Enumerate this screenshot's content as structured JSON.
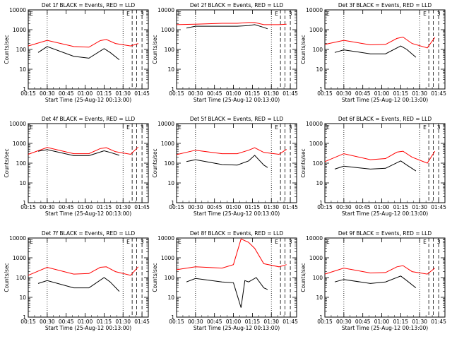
{
  "chart_data": [
    {
      "type": "line",
      "title": "Det 1f BLACK = Events, RED = LLD",
      "xlabel": "Start Time (25-Aug-12 00:13:00)",
      "ylabel": "Counts/sec",
      "series": [
        {
          "name": "Events",
          "color": "#000000",
          "values": [
            [
              0.38,
              70
            ],
            [
              0.5,
              140
            ],
            [
              0.85,
              45
            ],
            [
              1.05,
              36
            ],
            [
              1.25,
              110
            ],
            [
              1.33,
              70
            ],
            [
              1.45,
              30
            ]
          ]
        },
        {
          "name": "LLD",
          "color": "#ff0000",
          "values": [
            [
              0.25,
              150
            ],
            [
              0.5,
              290
            ],
            [
              0.85,
              140
            ],
            [
              1.05,
              130
            ],
            [
              1.2,
              280
            ],
            [
              1.28,
              320
            ],
            [
              1.4,
              200
            ],
            [
              1.6,
              150
            ],
            [
              1.7,
              200
            ]
          ]
        }
      ],
      "marker": "3"
    },
    {
      "type": "line",
      "title": "Det 2f BLACK = Events, RED = LLD",
      "xlabel": "Start Time (25-Aug-12 00:13:00)",
      "ylabel": "Counts/sec",
      "series": [
        {
          "name": "Events",
          "color": "#000000",
          "values": [
            [
              0.38,
              1200
            ],
            [
              0.5,
              1500
            ],
            [
              0.85,
              1500
            ],
            [
              1.05,
              1500
            ],
            [
              1.2,
              1600
            ],
            [
              1.28,
              1800
            ],
            [
              1.4,
              1300
            ],
            [
              1.45,
              1100
            ]
          ]
        },
        {
          "name": "LLD",
          "color": "#ff0000",
          "values": [
            [
              0.25,
              1800
            ],
            [
              0.5,
              1900
            ],
            [
              0.85,
              2100
            ],
            [
              1.05,
              2100
            ],
            [
              1.2,
              2300
            ],
            [
              1.28,
              2300
            ],
            [
              1.4,
              1800
            ],
            [
              1.6,
              1800
            ],
            [
              1.7,
              1900
            ]
          ]
        }
      ],
      "marker": "3"
    },
    {
      "type": "line",
      "title": "Det 3f BLACK = Events, RED = LLD",
      "xlabel": "Start Time (25-Aug-12 00:13:00)",
      "ylabel": "Counts/sec",
      "series": [
        {
          "name": "Events",
          "color": "#000000",
          "values": [
            [
              0.38,
              70
            ],
            [
              0.5,
              95
            ],
            [
              0.85,
              60
            ],
            [
              1.05,
              60
            ],
            [
              1.25,
              150
            ],
            [
              1.33,
              100
            ],
            [
              1.45,
              40
            ]
          ]
        },
        {
          "name": "LLD",
          "color": "#ff0000",
          "values": [
            [
              0.25,
              180
            ],
            [
              0.5,
              290
            ],
            [
              0.85,
              170
            ],
            [
              1.05,
              180
            ],
            [
              1.2,
              360
            ],
            [
              1.28,
              420
            ],
            [
              1.4,
              200
            ],
            [
              1.6,
              120
            ],
            [
              1.7,
              400
            ]
          ]
        }
      ],
      "marker": "3"
    },
    {
      "type": "line",
      "title": "Det 4f BLACK = Events, RED = LLD",
      "xlabel": "Start Time (25-Aug-12 00:13:00)",
      "ylabel": "Counts/sec",
      "series": [
        {
          "name": "Events",
          "color": "#000000",
          "values": [
            [
              0.38,
              400
            ],
            [
              0.5,
              480
            ],
            [
              0.85,
              240
            ],
            [
              1.05,
              240
            ],
            [
              1.25,
              420
            ],
            [
              1.33,
              350
            ],
            [
              1.45,
              250
            ]
          ]
        },
        {
          "name": "LLD",
          "color": "#ff0000",
          "values": [
            [
              0.25,
              280
            ],
            [
              0.5,
              620
            ],
            [
              0.85,
              300
            ],
            [
              1.05,
              300
            ],
            [
              1.2,
              550
            ],
            [
              1.28,
              600
            ],
            [
              1.4,
              380
            ],
            [
              1.6,
              280
            ],
            [
              1.7,
              650
            ]
          ]
        }
      ],
      "marker": "3"
    },
    {
      "type": "line",
      "title": "Det 5f BLACK = Events, RED = LLD",
      "xlabel": "Start Time (25-Aug-12 00:13:00)",
      "ylabel": "Counts/sec",
      "series": [
        {
          "name": "Events",
          "color": "#000000",
          "values": [
            [
              0.38,
              120
            ],
            [
              0.5,
              150
            ],
            [
              0.85,
              85
            ],
            [
              1.05,
              80
            ],
            [
              1.2,
              130
            ],
            [
              1.28,
              250
            ],
            [
              1.4,
              80
            ],
            [
              1.45,
              60
            ]
          ]
        },
        {
          "name": "LLD",
          "color": "#ff0000",
          "values": [
            [
              0.25,
              270
            ],
            [
              0.5,
              450
            ],
            [
              0.85,
              300
            ],
            [
              1.05,
              300
            ],
            [
              1.2,
              450
            ],
            [
              1.28,
              600
            ],
            [
              1.4,
              350
            ],
            [
              1.6,
              280
            ],
            [
              1.7,
              500
            ]
          ]
        }
      ],
      "marker": "3"
    },
    {
      "type": "line",
      "title": "Det 6f BLACK = Events, RED = LLD",
      "xlabel": "Start Time (25-Aug-12 00:13:00)",
      "ylabel": "Counts/sec",
      "series": [
        {
          "name": "Events",
          "color": "#000000",
          "values": [
            [
              0.38,
              50
            ],
            [
              0.5,
              70
            ],
            [
              0.85,
              50
            ],
            [
              1.05,
              55
            ],
            [
              1.25,
              130
            ],
            [
              1.33,
              80
            ],
            [
              1.45,
              40
            ]
          ]
        },
        {
          "name": "LLD",
          "color": "#ff0000",
          "values": [
            [
              0.25,
              120
            ],
            [
              0.5,
              300
            ],
            [
              0.85,
              150
            ],
            [
              1.05,
              170
            ],
            [
              1.2,
              360
            ],
            [
              1.28,
              400
            ],
            [
              1.4,
              200
            ],
            [
              1.6,
              100
            ],
            [
              1.7,
              400
            ]
          ]
        }
      ],
      "marker": "3"
    },
    {
      "type": "line",
      "title": "Det 7f BLACK = Events, RED = LLD",
      "xlabel": "Start Time (25-Aug-12 00:13:00)",
      "ylabel": "Counts/sec",
      "series": [
        {
          "name": "Events",
          "color": "#000000",
          "values": [
            [
              0.38,
              50
            ],
            [
              0.5,
              70
            ],
            [
              0.85,
              30
            ],
            [
              1.05,
              30
            ],
            [
              1.25,
              100
            ],
            [
              1.33,
              60
            ],
            [
              1.45,
              20
            ]
          ]
        },
        {
          "name": "LLD",
          "color": "#ff0000",
          "values": [
            [
              0.25,
              130
            ],
            [
              0.5,
              330
            ],
            [
              0.85,
              150
            ],
            [
              1.05,
              160
            ],
            [
              1.2,
              330
            ],
            [
              1.28,
              350
            ],
            [
              1.4,
              200
            ],
            [
              1.6,
              130
            ],
            [
              1.7,
              350
            ]
          ]
        }
      ],
      "marker": "3"
    },
    {
      "type": "line",
      "title": "Det 8f BLACK = Events, RED = LLD",
      "xlabel": "Start Time (25-Aug-12 00:13:00)",
      "ylabel": "Counts/sec",
      "series": [
        {
          "name": "Events",
          "color": "#000000",
          "values": [
            [
              0.38,
              60
            ],
            [
              0.5,
              90
            ],
            [
              0.85,
              60
            ],
            [
              1.0,
              55
            ],
            [
              1.1,
              3
            ],
            [
              1.15,
              70
            ],
            [
              1.2,
              60
            ],
            [
              1.3,
              100
            ],
            [
              1.4,
              30
            ],
            [
              1.45,
              25
            ]
          ]
        },
        {
          "name": "LLD",
          "color": "#ff0000",
          "values": [
            [
              0.25,
              250
            ],
            [
              0.5,
              350
            ],
            [
              0.85,
              300
            ],
            [
              1.0,
              450
            ],
            [
              1.1,
              9000
            ],
            [
              1.2,
              6000
            ],
            [
              1.28,
              3000
            ],
            [
              1.4,
              500
            ],
            [
              1.6,
              350
            ],
            [
              1.7,
              450
            ]
          ]
        }
      ],
      "marker": "3"
    },
    {
      "type": "line",
      "title": "Det 9f BLACK = Events, RED = LLD",
      "xlabel": "Start Time (25-Aug-12 00:13:00)",
      "ylabel": "Counts/sec",
      "series": [
        {
          "name": "Events",
          "color": "#000000",
          "values": [
            [
              0.38,
              60
            ],
            [
              0.5,
              80
            ],
            [
              0.85,
              50
            ],
            [
              1.05,
              60
            ],
            [
              1.25,
              120
            ],
            [
              1.33,
              70
            ],
            [
              1.45,
              30
            ]
          ]
        },
        {
          "name": "LLD",
          "color": "#ff0000",
          "values": [
            [
              0.25,
              150
            ],
            [
              0.5,
              300
            ],
            [
              0.85,
              170
            ],
            [
              1.05,
              180
            ],
            [
              1.2,
              350
            ],
            [
              1.28,
              400
            ],
            [
              1.4,
              200
            ],
            [
              1.6,
              150
            ],
            [
              1.7,
              300
            ]
          ]
        }
      ],
      "marker": "3"
    }
  ],
  "shared_axes": {
    "x_range_hours": [
      0.25,
      1.833
    ],
    "x_ticks": [
      [
        0.25,
        "00:15"
      ],
      [
        0.5,
        "00:30"
      ],
      [
        0.75,
        "00:45"
      ],
      [
        1.0,
        "01:00"
      ],
      [
        1.25,
        "01:15"
      ],
      [
        1.5,
        "01:30"
      ],
      [
        1.75,
        "01:45"
      ]
    ],
    "y_range": [
      1,
      10000
    ],
    "y_ticks": [
      [
        1,
        "1"
      ],
      [
        10,
        "10"
      ],
      [
        100,
        "100"
      ],
      [
        1000,
        "1000"
      ],
      [
        10000,
        "10000"
      ]
    ],
    "dotted_lines": [
      0.5,
      1.5
    ],
    "dashed_lines": [
      1.62,
      1.68,
      1.75
    ],
    "corner_labels": {
      "left": "E",
      "right": "E"
    }
  }
}
